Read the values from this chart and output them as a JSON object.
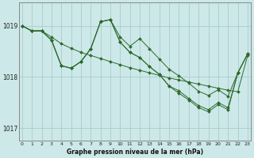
{
  "title": "Graphe pression niveau de la mer (hPa)",
  "background_color": "#cce8e8",
  "grid_color": "#aacccc",
  "line_color": "#2d6a2d",
  "ylim": [
    1016.75,
    1019.45
  ],
  "yticks": [
    1017.0,
    1018.0,
    1019.0
  ],
  "xlim": [
    -0.3,
    23.3
  ],
  "series1": [
    1019.0,
    1018.9,
    1018.9,
    1018.78,
    1018.65,
    1018.56,
    1018.48,
    1018.42,
    1018.36,
    1018.3,
    1018.24,
    1018.18,
    1018.13,
    1018.08,
    1018.03,
    1017.98,
    1017.94,
    1017.9,
    1017.86,
    1017.82,
    1017.78,
    1017.74,
    1017.71,
    1018.42
  ],
  "series2": [
    1019.0,
    1018.9,
    1018.9,
    1018.72,
    1018.22,
    1018.17,
    1018.3,
    1018.55,
    1019.08,
    1019.12,
    1018.78,
    1018.6,
    1018.75,
    1018.55,
    1018.35,
    1018.15,
    1018.02,
    1017.88,
    1017.72,
    1017.64,
    1017.75,
    1017.62,
    1018.08,
    1018.45
  ],
  "series3": [
    1019.0,
    1018.9,
    1018.9,
    1018.72,
    1018.22,
    1018.17,
    1018.3,
    1018.55,
    1019.08,
    1019.12,
    1018.68,
    1018.48,
    1018.38,
    1018.2,
    1018.05,
    1017.82,
    1017.73,
    1017.58,
    1017.44,
    1017.36,
    1017.5,
    1017.4,
    1018.08,
    1018.45
  ],
  "series4": [
    1019.0,
    1018.9,
    1018.9,
    1018.72,
    1018.22,
    1018.17,
    1018.3,
    1018.55,
    1019.08,
    1019.12,
    1018.68,
    1018.48,
    1018.38,
    1018.2,
    1018.05,
    1017.82,
    1017.68,
    1017.55,
    1017.4,
    1017.32,
    1017.46,
    1017.36,
    1018.08,
    1018.45
  ]
}
